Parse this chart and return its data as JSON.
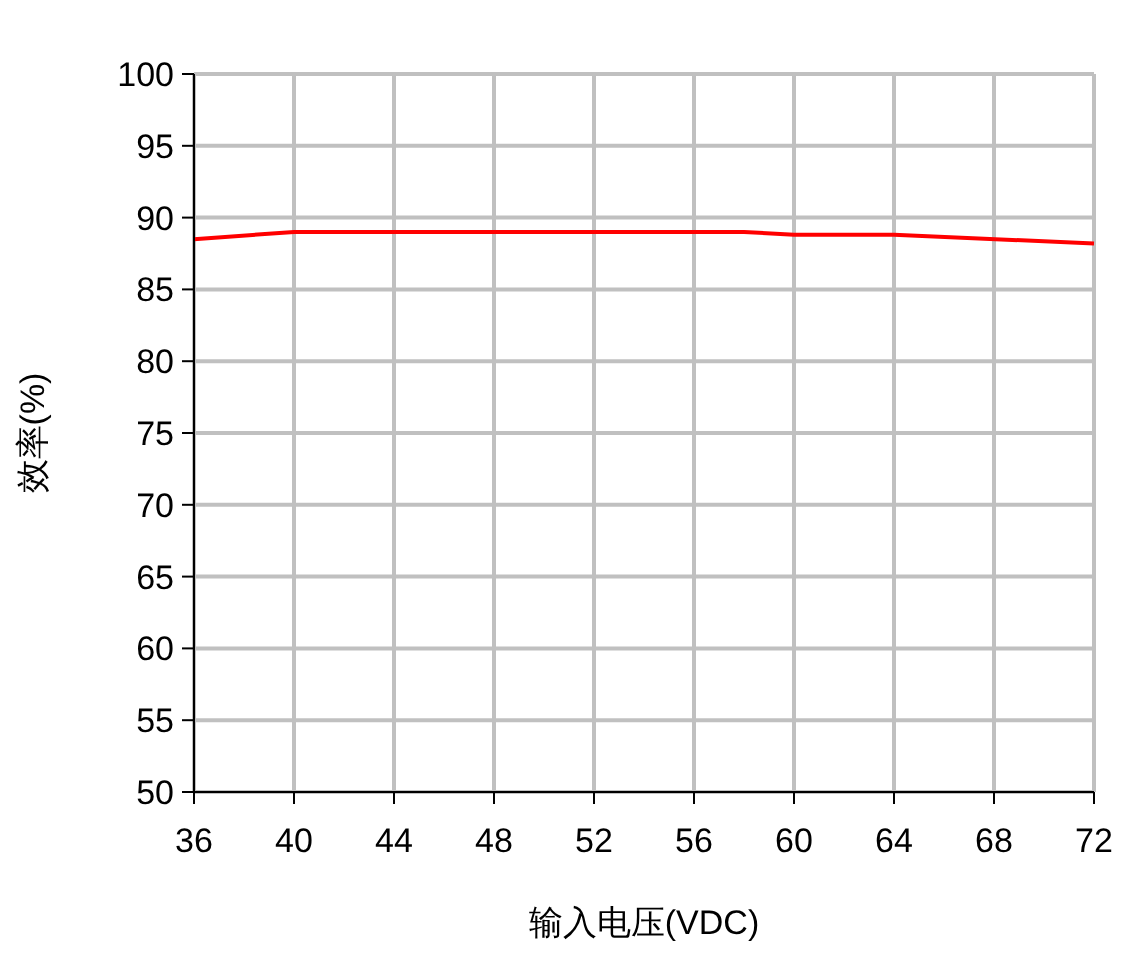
{
  "chart_data": {
    "type": "line",
    "xlabel": "输入电压(VDC)",
    "ylabel": "效率(%)",
    "x": [
      36,
      40,
      58,
      60,
      64,
      72
    ],
    "series": [
      {
        "color": "#ff0000",
        "values": [
          88.5,
          89.0,
          89.0,
          88.8,
          88.8,
          88.2
        ]
      }
    ],
    "xlim": [
      36,
      72
    ],
    "xticks": [
      36,
      40,
      44,
      48,
      52,
      56,
      60,
      64,
      68,
      72
    ],
    "ylim": [
      50,
      100
    ],
    "yticks": [
      50,
      55,
      60,
      65,
      70,
      75,
      80,
      85,
      90,
      95,
      100
    ],
    "grid": true,
    "marker": "none",
    "line_style": "solid"
  }
}
